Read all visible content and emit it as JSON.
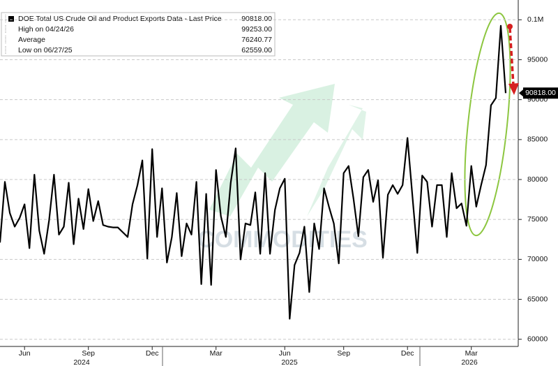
{
  "chart_data": {
    "type": "line",
    "legend": [
      {
        "label": "DOE Total US Crude Oil and Product Exports Data - Last Price",
        "value": "90818.00"
      },
      {
        "label": "High on 04/24/26",
        "value": "99253.00"
      },
      {
        "label": "Average",
        "value": "76240.77"
      },
      {
        "label": "Low on 06/27/25",
        "value": "62559.00"
      }
    ],
    "last_price_label": "90818.00",
    "watermark": "COMMODITIES",
    "years": [
      "2024",
      "2025",
      "2026"
    ],
    "categories": [
      null,
      null,
      null,
      null,
      null,
      "Jun",
      null,
      null,
      null,
      null,
      null,
      null,
      null,
      null,
      null,
      null,
      null,
      null,
      "Sep",
      null,
      null,
      null,
      null,
      null,
      null,
      null,
      null,
      null,
      null,
      null,
      null,
      "Dec",
      null,
      null,
      null,
      null,
      null,
      null,
      null,
      null,
      null,
      null,
      null,
      null,
      "Mar",
      null,
      null,
      null,
      null,
      null,
      null,
      null,
      null,
      null,
      null,
      null,
      null,
      null,
      "Jun",
      null,
      null,
      null,
      null,
      null,
      null,
      null,
      null,
      null,
      null,
      null,
      "Sep",
      null,
      null,
      null,
      null,
      null,
      null,
      null,
      null,
      null,
      null,
      null,
      null,
      "Dec",
      null,
      null,
      null,
      null,
      null,
      null,
      null,
      null,
      null,
      null,
      null,
      null,
      "Mar",
      null,
      null,
      null,
      null,
      null,
      null,
      null
    ],
    "series": [
      {
        "name": "DOE Total US Crude Oil and Product Exports Data",
        "color": "#000000",
        "values": [
          72100,
          79700,
          75800,
          74100,
          75200,
          76900,
          71400,
          80600,
          73600,
          70700,
          74900,
          80600,
          73100,
          74100,
          79600,
          71900,
          77600,
          73800,
          78800,
          74800,
          77300,
          74300,
          74100,
          74000,
          74000,
          73400,
          72800,
          76900,
          79300,
          82400,
          70100,
          83800,
          72800,
          78900,
          69600,
          72800,
          78300,
          70400,
          74500,
          73100,
          79700,
          66900,
          78200,
          66800,
          81200,
          75400,
          72800,
          79600,
          83900,
          70000,
          74500,
          74300,
          78400,
          70700,
          80800,
          70700,
          76200,
          78900,
          80100,
          62559,
          69300,
          70800,
          74100,
          65900,
          74500,
          71300,
          78900,
          76600,
          74500,
          69500,
          80800,
          81700,
          77600,
          72900,
          80300,
          81200,
          77200,
          79900,
          70200,
          78100,
          79300,
          78200,
          79300,
          85200,
          77900,
          70800,
          80500,
          79700,
          74100,
          79300,
          79300,
          72800,
          80800,
          76400,
          77000,
          74200,
          81700,
          76600,
          79300,
          81800,
          89300,
          90200,
          99253,
          90818
        ]
      }
    ],
    "ylim": [
      59100,
      101600
    ],
    "yticks": [
      60000,
      65000,
      70000,
      75000,
      80000,
      85000,
      90000,
      95000,
      {
        "value": 100000,
        "label": "0.1M"
      }
    ],
    "grid": true
  }
}
